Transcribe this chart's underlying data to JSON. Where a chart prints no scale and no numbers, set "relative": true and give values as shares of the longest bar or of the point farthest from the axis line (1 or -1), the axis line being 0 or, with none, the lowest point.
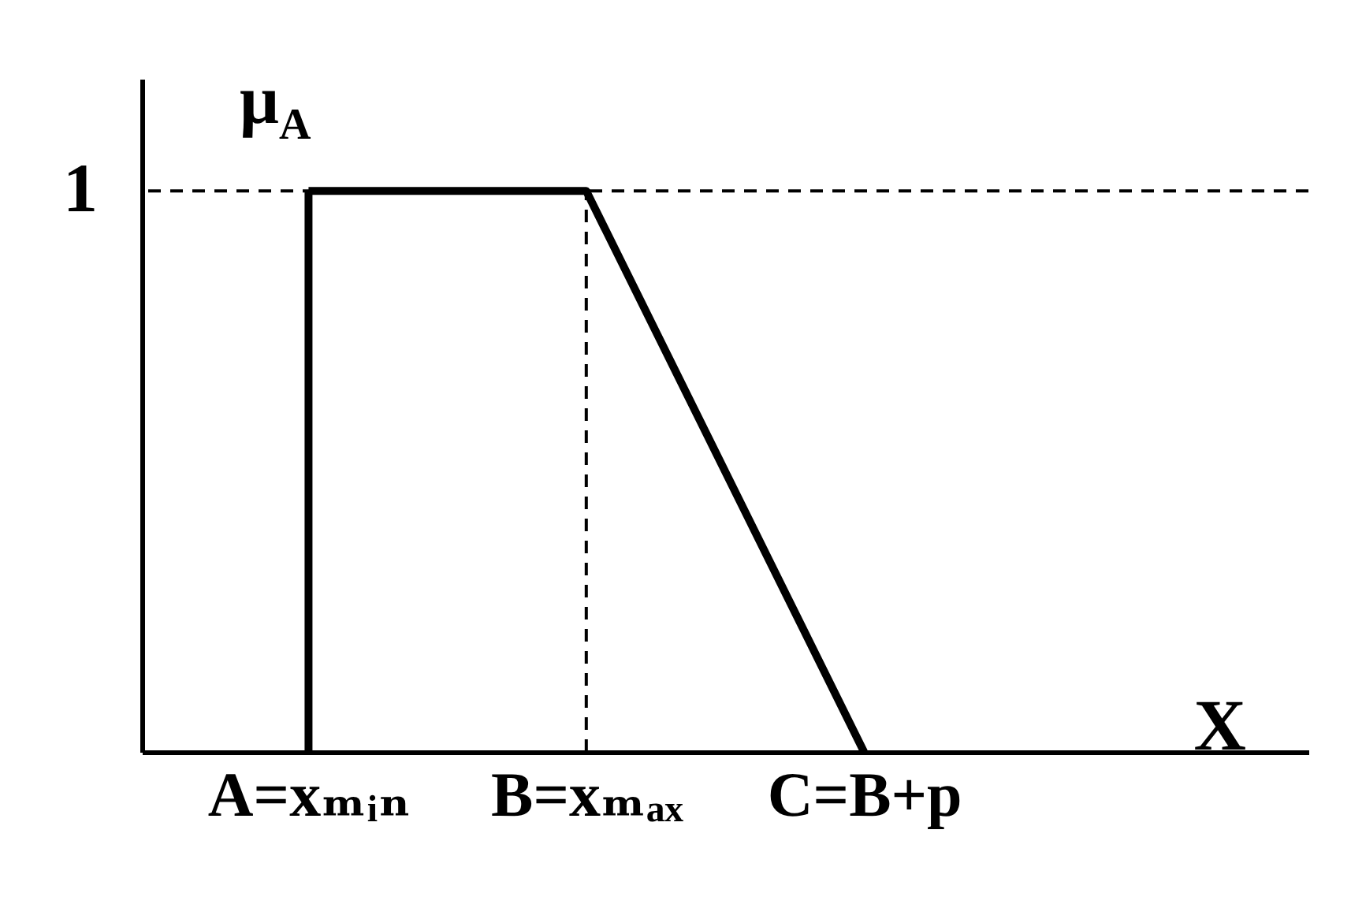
{
  "chart_data": {
    "type": "line",
    "relative": true,
    "xlabel": "X",
    "ylabel": "μ$_{A}$",
    "categories": [
      "A=xₘᵢₙ",
      "B=xₘₐₓ",
      "C=B+p"
    ],
    "series": [
      {
        "color": "#000000",
        "values": [
          1,
          1,
          0
        ]
      }
    ],
    "marker": "none",
    "line_style": "solid",
    "grid": false,
    "ref_lines": [
      {
        "axis": "y",
        "value": 1,
        "label": "1",
        "line_style": "dashed",
        "color": "#000000"
      },
      {
        "axis": "x",
        "value": "A=xₘᵢₙ",
        "line_style": "solid",
        "color": "#000000"
      },
      {
        "axis": "x",
        "value": "B=xₘₐₓ",
        "line_style": "dashed",
        "color": "#000000"
      }
    ]
  }
}
